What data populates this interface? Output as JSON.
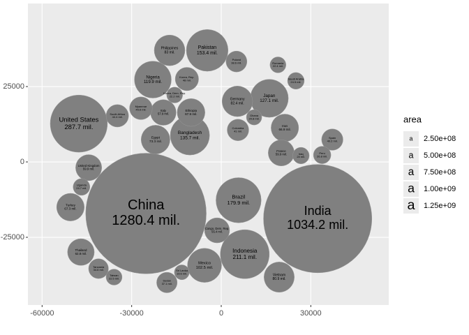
{
  "chart_data": {
    "type": "bubble",
    "xlim": [
      -64750,
      56100
    ],
    "ylim": [
      -47450,
      52550
    ],
    "xticks": [
      -60000,
      -30000,
      0,
      30000
    ],
    "yticks": [
      -25000,
      0,
      25000
    ],
    "grid": true,
    "color": "#808080",
    "legend_title": "area",
    "legend": [
      {
        "value": 250000000,
        "label": "2.50e+08"
      },
      {
        "value": 500000000,
        "label": "5.00e+08"
      },
      {
        "value": 750000000,
        "label": "7.50e+08"
      },
      {
        "value": 1000000000,
        "label": "1.00e+09"
      },
      {
        "value": 1250000000,
        "label": "1.25e+09"
      }
    ],
    "legend_key": "a",
    "categories": [
      "China",
      "India",
      "United States",
      "Indonesia",
      "Brazil",
      "Pakistan",
      "Bangladesh",
      "Japan",
      "Nigeria",
      "Mexico",
      "Philippines",
      "Germany",
      "Vietnam",
      "Egypt",
      "Turkey",
      "Iran",
      "Ethiopia",
      "Thailand",
      "France",
      "United Kingdom",
      "Italy",
      "Congo, Dem. Rep.",
      "Korea, Rep.",
      "Myanmar",
      "South Africa",
      "Spain",
      "Colombia",
      "Poland",
      "Sudan",
      "Tanzania",
      "Uganda",
      "Sri Lanka",
      "Taiwan",
      "Peru",
      "Iraq",
      "Romania",
      "Saudi Arabia",
      "Korea, Dem. Rep.",
      "Ghana"
    ],
    "x": [
      -25200,
      32300,
      -47700,
      7900,
      5800,
      -4700,
      -10500,
      16100,
      -22900,
      -5600,
      -17300,
      5400,
      19400,
      -22000,
      -50500,
      21300,
      -10100,
      -47000,
      20100,
      -44400,
      -19400,
      -1400,
      -11500,
      -26900,
      -34800,
      37200,
      5600,
      5100,
      -18200,
      -41100,
      -46800,
      -13200,
      -35900,
      33800,
      26700,
      19000,
      25000,
      -15600,
      11000
    ],
    "y": [
      -17100,
      -18800,
      12700,
      -30600,
      -12700,
      37000,
      8800,
      21100,
      27300,
      -34300,
      37000,
      20100,
      -38200,
      7400,
      -15000,
      11300,
      16400,
      -29900,
      3000,
      -1900,
      16400,
      -22700,
      27500,
      17800,
      15300,
      7400,
      10600,
      33300,
      -40000,
      -35400,
      -8300,
      -36600,
      -38200,
      2300,
      2100,
      32200,
      26900,
      22200,
      14800
    ],
    "values": [
      1280.4,
      1034.2,
      287.7,
      211.1,
      179.9,
      153.4,
      135.7,
      127.1,
      119.9,
      102.5,
      83,
      82.4,
      80.9,
      73.3,
      67.3,
      66.9,
      67.9,
      62.8,
      59.9,
      59.9,
      57.9,
      55.4,
      48,
      45.6,
      44.4,
      40.2,
      41,
      38.6,
      37.1,
      34.6,
      24.7,
      19.6,
      22.5,
      26.8,
      24,
      22.4,
      24.5,
      22.2,
      20.8
    ],
    "value_labels": [
      "1280.4 mil.",
      "1034.2 mil.",
      "287.7 mil.",
      "211.1 mil.",
      "179.9 mil.",
      "153.4 mil.",
      "135.7 mil.",
      "127.1 mil.",
      "119.9 mil.",
      "102.5 mil.",
      "83 mil.",
      "82.4 mil.",
      "80.9 mil.",
      "73.3 mil.",
      "67.3 mil.",
      "66.9 mil.",
      "67.9 mil.",
      "62.8 mil.",
      "59.9 mil.",
      "59.9 mil.",
      "57.9 mil.",
      "55.4 mil.",
      "48 mil.",
      "45.6 mil.",
      "44.4 mil.",
      "40.2 mil.",
      "41 mil.",
      "38.6 mil.",
      "37.1 mil.",
      "34.6 mil.",
      "24.7 mil.",
      "19.6 mil.",
      "22.5 mil.",
      "26.8 mil.",
      "24 mil.",
      "22.4 mil.",
      "24.5 mil.",
      "22.2 mil.",
      "20.8 mil."
    ]
  }
}
